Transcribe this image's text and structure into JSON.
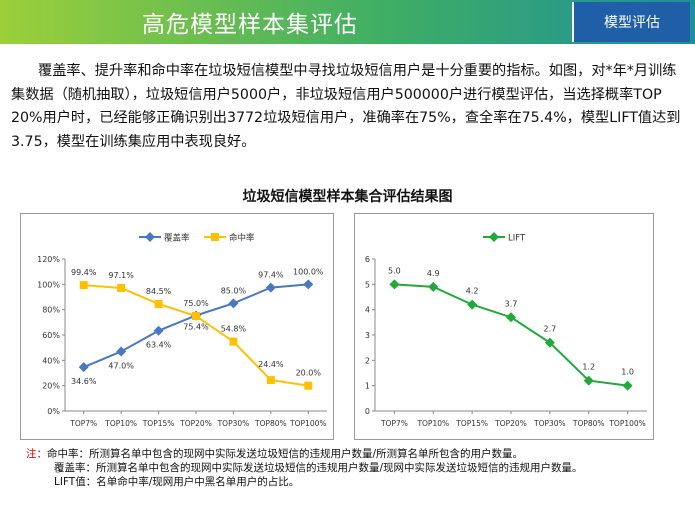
{
  "header": {
    "title": "高危模型样本集评估",
    "tab_label": "模型评估"
  },
  "intro": {
    "paragraph": "覆盖率、提升率和命中率在垃圾短信模型中寻找垃圾短信用户是十分重要的指标。如图，对*年*月训练集数据（随机抽取），垃圾短信用户5000户，非垃圾短信用户500000户进行模型评估，当选择概率TOP 20%用户时，已经能够正确识别出3772垃圾短信用户，准确率在75%，查全率在75.4%，模型LIFT值达到3.75，模型在训练集应用中表现良好。"
  },
  "figure": {
    "title": "垃圾短信模型样本集合评估结果图"
  },
  "colors": {
    "coverage": "#4a78c4",
    "hit": "#ffc000",
    "lift": "#1faa3a",
    "note_lead": "#d40000"
  },
  "chart_data": [
    {
      "type": "line",
      "categories": [
        "TOP7%",
        "TOP10%",
        "TOP15%",
        "TOP20%",
        "TOP30%",
        "TOP80%",
        "TOP100%"
      ],
      "series": [
        {
          "name": "覆盖率",
          "values": [
            34.6,
            47.0,
            63.4,
            75.4,
            85.0,
            97.4,
            100.0
          ],
          "labels": [
            "34.6%",
            "47.0%",
            "63.4%",
            "75.4%",
            "85.0%",
            "97.4%",
            "100.0%"
          ]
        },
        {
          "name": "命中率",
          "values": [
            99.4,
            97.1,
            84.5,
            75.0,
            54.8,
            24.4,
            20.0
          ],
          "labels": [
            "99.4%",
            "97.1%",
            "84.5%",
            "75.0%",
            "54.8%",
            "24.4%",
            "20.0%"
          ]
        }
      ],
      "yticks": [
        "0%",
        "20%",
        "40%",
        "60%",
        "80%",
        "100%",
        "120%"
      ],
      "ylim": [
        0,
        120
      ],
      "legend": "top",
      "grid": false
    },
    {
      "type": "line",
      "categories": [
        "TOP7%",
        "TOP10%",
        "TOP15%",
        "TOP20%",
        "TOP30%",
        "TOP80%",
        "TOP100%"
      ],
      "series": [
        {
          "name": "LIFT",
          "values": [
            5.0,
            4.9,
            4.2,
            3.7,
            2.7,
            1.2,
            1.0
          ],
          "labels": [
            "5.0",
            "4.9",
            "4.2",
            "3.7",
            "2.7",
            "1.2",
            "1.0"
          ]
        }
      ],
      "yticks": [
        "0",
        "1",
        "2",
        "3",
        "4",
        "5",
        "6"
      ],
      "ylim": [
        0,
        6
      ],
      "legend": "top",
      "grid": false
    }
  ],
  "notes": {
    "lead": "注：",
    "hit_rate": "命中率：所测算名单中包含的现网中实际发送垃圾短信的违规用户数量/所测算名单所包含的用户数量。",
    "coverage": "覆盖率：所测算名单中包含的现网中实际发送垃圾短信的违规用户数量/现网中实际发送垃圾短信的违规用户数量。",
    "lift": "LIFT值：名单命中率/现网用户中黑名单用户的占比。"
  }
}
